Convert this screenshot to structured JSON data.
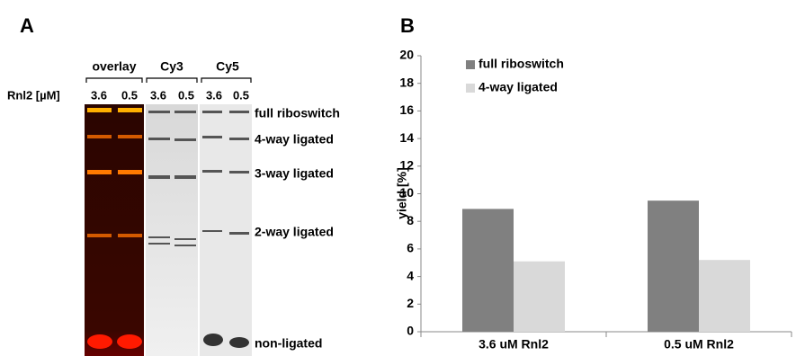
{
  "panel_a": {
    "panel_label": "A",
    "groups": [
      "overlay",
      "Cy3",
      "Cy5"
    ],
    "row_label": "Rnl2 [µM]",
    "lanes": [
      "3.6",
      "0.5",
      "3.6",
      "0.5",
      "3.6",
      "0.5"
    ],
    "bands": [
      "full riboswitch",
      "4-way ligated",
      "3-way ligated",
      "2-way ligated",
      "non-ligated"
    ]
  },
  "chart_data": {
    "type": "bar",
    "panel_label": "B",
    "y_label": "yield [%]",
    "categories": [
      "3.6 uM Rnl2",
      "0.5 uM Rnl2"
    ],
    "series": [
      {
        "name": "full riboswitch",
        "color": "#808080",
        "values": [
          8.9,
          9.5
        ]
      },
      {
        "name": "4-way ligated",
        "color": "#d9d9d9",
        "values": [
          5.1,
          5.2
        ]
      }
    ],
    "ylim": [
      0,
      20
    ],
    "yticks": [
      0,
      2,
      4,
      6,
      8,
      10,
      12,
      14,
      16,
      18,
      20
    ],
    "legend": "upper-left",
    "grid": false
  }
}
